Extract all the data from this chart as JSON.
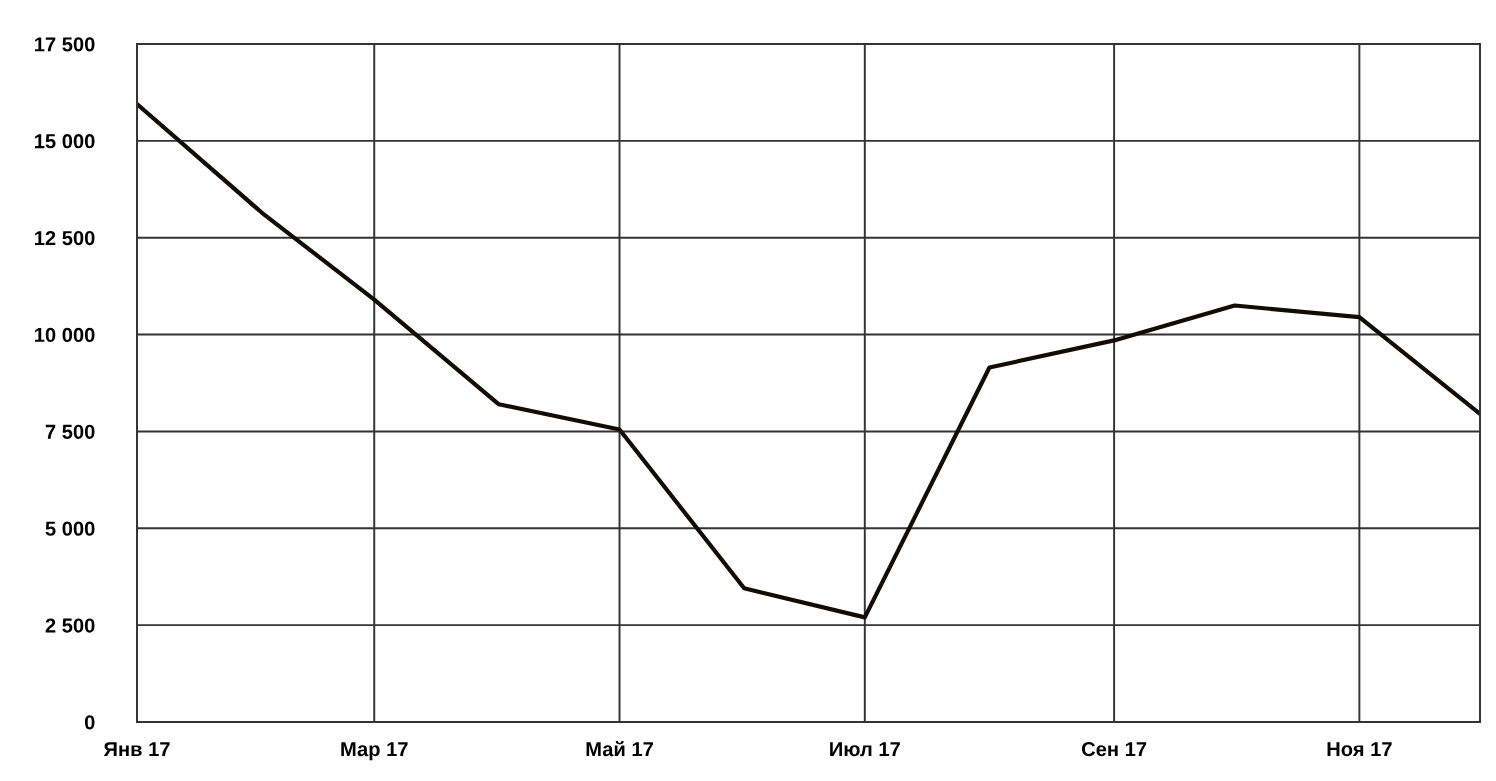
{
  "chart_data": {
    "type": "line",
    "x": [
      "2017-01",
      "2017-02",
      "2017-03",
      "2017-04",
      "2017-05",
      "2017-06",
      "2017-07",
      "2017-08",
      "2017-09",
      "2017-10",
      "2017-11",
      "2017-12"
    ],
    "series": [
      {
        "color": "#140c00",
        "values": [
          15950,
          13150,
          10900,
          8200,
          7550,
          3450,
          2700,
          9150,
          9850,
          10750,
          10450,
          7950
        ]
      }
    ],
    "xlim": [
      "2017-01",
      "2017-12"
    ],
    "xticks": [
      {
        "value": "2017-01",
        "label": "Янв 17"
      },
      {
        "value": "2017-03",
        "label": "Мар 17"
      },
      {
        "value": "2017-05",
        "label": "Май 17"
      },
      {
        "value": "2017-07",
        "label": "Июл 17"
      },
      {
        "value": "2017-09",
        "label": "Сен 17"
      },
      {
        "value": "2017-11",
        "label": "Ноя 17"
      }
    ],
    "ylim": [
      0,
      17500
    ],
    "yticks": [
      0,
      {
        "value": 2500,
        "label": "2 500"
      },
      {
        "value": 5000,
        "label": "5 000"
      },
      {
        "value": 7500,
        "label": "7 500"
      },
      {
        "value": 10000,
        "label": "10 000"
      },
      {
        "value": 12500,
        "label": "12 500"
      },
      {
        "value": 15000,
        "label": "15 000"
      },
      {
        "value": 17500,
        "label": "17 500"
      }
    ],
    "grid": true,
    "legend": false,
    "marker": "none",
    "line_style": "solid"
  }
}
